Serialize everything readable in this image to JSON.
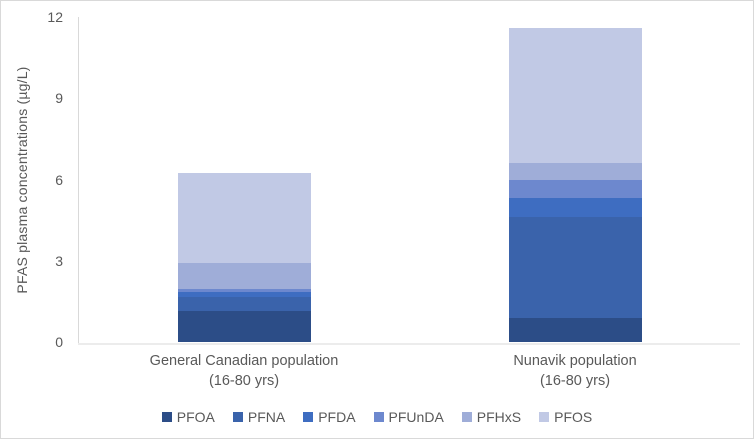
{
  "figure": {
    "background": "#ffffff",
    "border_color": "#d9d9d9",
    "text_color": "#595959"
  },
  "chart_data": {
    "type": "bar",
    "stacked": true,
    "title": "",
    "xlabel": "",
    "ylabel": "PFAS plasma concentrations (µg/L)",
    "ylim": [
      0,
      12
    ],
    "yticks": [
      0,
      3,
      6,
      9,
      12
    ],
    "grid": false,
    "legend_position": "bottom",
    "categories": [
      {
        "line1": "General Canadian population",
        "line2": "(16-80 yrs)"
      },
      {
        "line1": "Nunavik population",
        "line2": "(16-80 yrs)"
      }
    ],
    "series": [
      {
        "name": "PFOA",
        "color": "#2c4d87",
        "values": [
          1.15,
          0.9
        ]
      },
      {
        "name": "PFNA",
        "color": "#3a63ab",
        "values": [
          0.5,
          3.7
        ]
      },
      {
        "name": "PFDA",
        "color": "#3e6dc1",
        "values": [
          0.2,
          0.7
        ]
      },
      {
        "name": "PFUnDA",
        "color": "#6d88ce",
        "values": [
          0.1,
          0.7
        ]
      },
      {
        "name": "PFHxS",
        "color": "#9fadd8",
        "values": [
          0.95,
          0.6
        ]
      },
      {
        "name": "PFOS",
        "color": "#c1c9e5",
        "values": [
          3.35,
          5.0
        ]
      }
    ],
    "totals": [
      6.25,
      11.6
    ]
  }
}
